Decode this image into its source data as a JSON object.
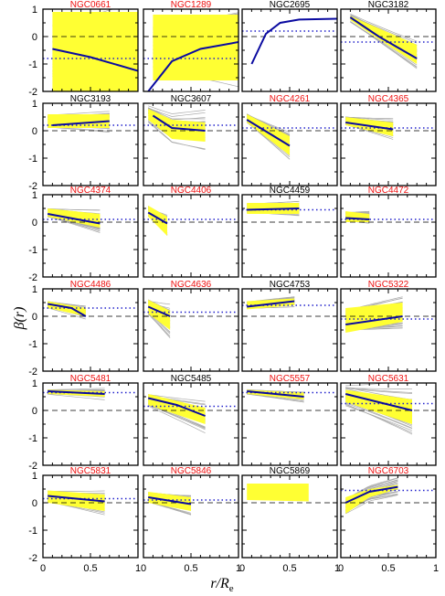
{
  "figure": {
    "ylabel": "β(r)",
    "xlabel_main": "r/R",
    "xlabel_sub": "e"
  },
  "colors": {
    "grid_models": "#aaaaaa",
    "confidence_band": "#ffff33",
    "best_fit": "#0a0aa0",
    "reference_dotted": "#2222cc",
    "zero_dashed": "#000000",
    "title_highlight": "#ee1111",
    "title_plain": "#000000"
  },
  "chart_data": {
    "type": "line",
    "xlim": [
      0,
      1
    ],
    "ylim": [
      -2,
      1
    ],
    "x_ticks": [
      "0",
      "0.5",
      "1"
    ],
    "y_ticks": [
      "1",
      "0",
      "-1",
      "-2"
    ],
    "panels": [
      {
        "name": "NGC0661",
        "highlight": true,
        "xmax": 1.0,
        "band": [
          [
            0.1,
            -2.0,
            0.9
          ],
          [
            0.5,
            -2.0,
            0.9
          ],
          [
            1.0,
            -2.0,
            0.9
          ]
        ],
        "fit": [
          [
            0.1,
            -0.45
          ],
          [
            0.5,
            -0.75
          ],
          [
            1.0,
            -1.25
          ]
        ],
        "dotted": -0.8,
        "spread": 0.9
      },
      {
        "name": "NGC1289",
        "highlight": true,
        "xmax": 1.0,
        "band": [
          [
            0.1,
            -1.6,
            0.8
          ],
          [
            0.5,
            -1.6,
            0.8
          ],
          [
            1.0,
            -1.6,
            0.8
          ]
        ],
        "fit": [
          [
            0.05,
            -2.0
          ],
          [
            0.3,
            -0.9
          ],
          [
            0.6,
            -0.45
          ],
          [
            1.0,
            -0.2
          ]
        ],
        "dotted": -0.8,
        "spread": 0.9
      },
      {
        "name": "NGC2695",
        "highlight": false,
        "xmax": 1.0,
        "band": [],
        "fit": [
          [
            0.1,
            -1.0
          ],
          [
            0.25,
            0.1
          ],
          [
            0.4,
            0.5
          ],
          [
            0.6,
            0.62
          ],
          [
            1.0,
            0.65
          ]
        ],
        "dotted": 0.2,
        "spread": 0
      },
      {
        "name": "NGC3182",
        "highlight": false,
        "xmax": 0.8,
        "band": [
          [
            0.1,
            0.6,
            0.75
          ],
          [
            0.4,
            -0.1,
            0.3
          ],
          [
            0.8,
            -1.0,
            -0.3
          ]
        ],
        "fit": [
          [
            0.1,
            0.7
          ],
          [
            0.4,
            0.0
          ],
          [
            0.8,
            -0.8
          ]
        ],
        "dotted": -0.2,
        "spread": 0.5
      },
      {
        "name": "NGC3193",
        "highlight": false,
        "xmax": 0.7,
        "band": [
          [
            0.05,
            0.1,
            0.6
          ],
          [
            0.7,
            0.1,
            0.6
          ]
        ],
        "fit": [
          [
            0.1,
            0.2
          ],
          [
            0.7,
            0.35
          ]
        ],
        "dotted": 0.2,
        "spread": 0.4
      },
      {
        "name": "NGC3607",
        "highlight": false,
        "xmax": 0.65,
        "band": [
          [
            0.05,
            0.4,
            0.8
          ],
          [
            0.3,
            -0.3,
            0.4
          ],
          [
            0.65,
            -0.4,
            0.3
          ]
        ],
        "fit": [
          [
            0.1,
            0.55
          ],
          [
            0.3,
            0.1
          ],
          [
            0.65,
            0.0
          ]
        ],
        "dotted": 0.2,
        "spread": 0.9
      },
      {
        "name": "NGC4261",
        "highlight": true,
        "xmax": 0.5,
        "band": [
          [
            0.05,
            0.3,
            0.6
          ],
          [
            0.5,
            -0.9,
            -0.2
          ]
        ],
        "fit": [
          [
            0.05,
            0.4
          ],
          [
            0.5,
            -0.55
          ]
        ],
        "dotted": 0.1,
        "spread": 0.4
      },
      {
        "name": "NGC4365",
        "highlight": true,
        "xmax": 0.55,
        "band": [
          [
            0.05,
            0.2,
            0.5
          ],
          [
            0.55,
            -0.2,
            0.3
          ]
        ],
        "fit": [
          [
            0.05,
            0.3
          ],
          [
            0.55,
            0.05
          ]
        ],
        "dotted": 0.1,
        "spread": 0.3
      },
      {
        "name": "NGC4374",
        "highlight": true,
        "xmax": 0.6,
        "band": [
          [
            0.05,
            0.2,
            0.5
          ],
          [
            0.6,
            -0.2,
            0.3
          ]
        ],
        "fit": [
          [
            0.05,
            0.3
          ],
          [
            0.6,
            -0.05
          ]
        ],
        "dotted": 0.1,
        "spread": 0.3
      },
      {
        "name": "NGC4406",
        "highlight": true,
        "xmax": 0.25,
        "band": [
          [
            0.05,
            0.2,
            0.6
          ],
          [
            0.25,
            -0.5,
            0.2
          ]
        ],
        "fit": [
          [
            0.05,
            0.35
          ],
          [
            0.25,
            -0.05
          ]
        ],
        "dotted": 0.1,
        "spread": 0.4
      },
      {
        "name": "NGC4459",
        "highlight": false,
        "xmax": 0.6,
        "band": [
          [
            0.05,
            0.3,
            0.7
          ],
          [
            0.6,
            0.3,
            0.7
          ]
        ],
        "fit": [
          [
            0.05,
            0.45
          ],
          [
            0.6,
            0.5
          ]
        ],
        "dotted": 0.45,
        "spread": 0.2
      },
      {
        "name": "NGC4472",
        "highlight": true,
        "xmax": 0.3,
        "band": [
          [
            0.05,
            0.0,
            0.4
          ],
          [
            0.3,
            0.0,
            0.3
          ]
        ],
        "fit": [
          [
            0.05,
            0.15
          ],
          [
            0.3,
            0.1
          ]
        ],
        "dotted": 0.1,
        "spread": 0.2
      },
      {
        "name": "NGC4486",
        "highlight": true,
        "xmax": 0.45,
        "band": [
          [
            0.05,
            0.3,
            0.55
          ],
          [
            0.45,
            0.0,
            0.3
          ]
        ],
        "fit": [
          [
            0.05,
            0.45
          ],
          [
            0.3,
            0.3
          ],
          [
            0.45,
            0.0
          ]
        ],
        "dotted": 0.3,
        "spread": 0.2
      },
      {
        "name": "NGC4636",
        "highlight": true,
        "xmax": 0.28,
        "band": [
          [
            0.05,
            0.1,
            0.6
          ],
          [
            0.28,
            -0.5,
            0.2
          ]
        ],
        "fit": [
          [
            0.05,
            0.35
          ],
          [
            0.28,
            0.0
          ]
        ],
        "dotted": 0.15,
        "spread": 0.6
      },
      {
        "name": "NGC4753",
        "highlight": false,
        "xmax": 0.55,
        "band": [
          [
            0.05,
            0.25,
            0.55
          ],
          [
            0.55,
            0.4,
            0.65
          ]
        ],
        "fit": [
          [
            0.05,
            0.35
          ],
          [
            0.55,
            0.55
          ]
        ],
        "dotted": 0.4,
        "spread": 0.15
      },
      {
        "name": "NGC5322",
        "highlight": true,
        "xmax": 0.65,
        "band": [
          [
            0.05,
            -0.6,
            0.3
          ],
          [
            0.65,
            -0.2,
            0.5
          ]
        ],
        "fit": [
          [
            0.05,
            -0.3
          ],
          [
            0.65,
            0.0
          ]
        ],
        "dotted": -0.1,
        "spread": 0.4
      },
      {
        "name": "NGC5481",
        "highlight": true,
        "xmax": 0.65,
        "band": [
          [
            0.05,
            0.6,
            0.75
          ],
          [
            0.65,
            0.5,
            0.7
          ]
        ],
        "fit": [
          [
            0.05,
            0.7
          ],
          [
            0.65,
            0.6
          ]
        ],
        "dotted": 0.65,
        "spread": 0.2
      },
      {
        "name": "NGC5485",
        "highlight": false,
        "xmax": 0.65,
        "band": [
          [
            0.05,
            0.2,
            0.6
          ],
          [
            0.65,
            -0.5,
            0.1
          ]
        ],
        "fit": [
          [
            0.05,
            0.45
          ],
          [
            0.35,
            0.2
          ],
          [
            0.65,
            -0.2
          ]
        ],
        "dotted": 0.15,
        "spread": 0.6
      },
      {
        "name": "NGC5557",
        "highlight": true,
        "xmax": 0.65,
        "band": [
          [
            0.05,
            0.6,
            0.75
          ],
          [
            0.65,
            0.4,
            0.65
          ]
        ],
        "fit": [
          [
            0.05,
            0.7
          ],
          [
            0.65,
            0.5
          ]
        ],
        "dotted": 0.65,
        "spread": 0.2
      },
      {
        "name": "NGC5631",
        "highlight": true,
        "xmax": 0.75,
        "band": [
          [
            0.05,
            0.3,
            0.75
          ],
          [
            0.75,
            -0.5,
            0.4
          ]
        ],
        "fit": [
          [
            0.05,
            0.6
          ],
          [
            0.75,
            0.0
          ]
        ],
        "dotted": 0.25,
        "spread": 1.2
      },
      {
        "name": "NGC5831",
        "highlight": true,
        "xmax": 0.65,
        "band": [
          [
            0.05,
            0.0,
            0.45
          ],
          [
            0.65,
            -0.3,
            0.3
          ]
        ],
        "fit": [
          [
            0.05,
            0.25
          ],
          [
            0.65,
            0.05
          ]
        ],
        "dotted": 0.15,
        "spread": 0.3
      },
      {
        "name": "NGC5846",
        "highlight": true,
        "xmax": 0.5,
        "band": [
          [
            0.05,
            0.0,
            0.4
          ],
          [
            0.5,
            -0.3,
            0.2
          ]
        ],
        "fit": [
          [
            0.05,
            0.2
          ],
          [
            0.5,
            -0.05
          ]
        ],
        "dotted": 0.1,
        "spread": 0.3
      },
      {
        "name": "NGC5869",
        "highlight": false,
        "xmax": 0.7,
        "band": [
          [
            0.05,
            0.1,
            0.7
          ],
          [
            0.7,
            0.05,
            0.7
          ]
        ],
        "fit": [],
        "dotted": null,
        "spread": 0
      },
      {
        "name": "NGC6703",
        "highlight": true,
        "xmax": 0.6,
        "band": [
          [
            0.05,
            -0.4,
            0.2
          ],
          [
            0.3,
            0.2,
            0.5
          ],
          [
            0.6,
            0.5,
            0.65
          ]
        ],
        "fit": [
          [
            0.05,
            0.0
          ],
          [
            0.3,
            0.4
          ],
          [
            0.6,
            0.58
          ]
        ],
        "dotted": 0.45,
        "spread": 0.6
      }
    ]
  }
}
